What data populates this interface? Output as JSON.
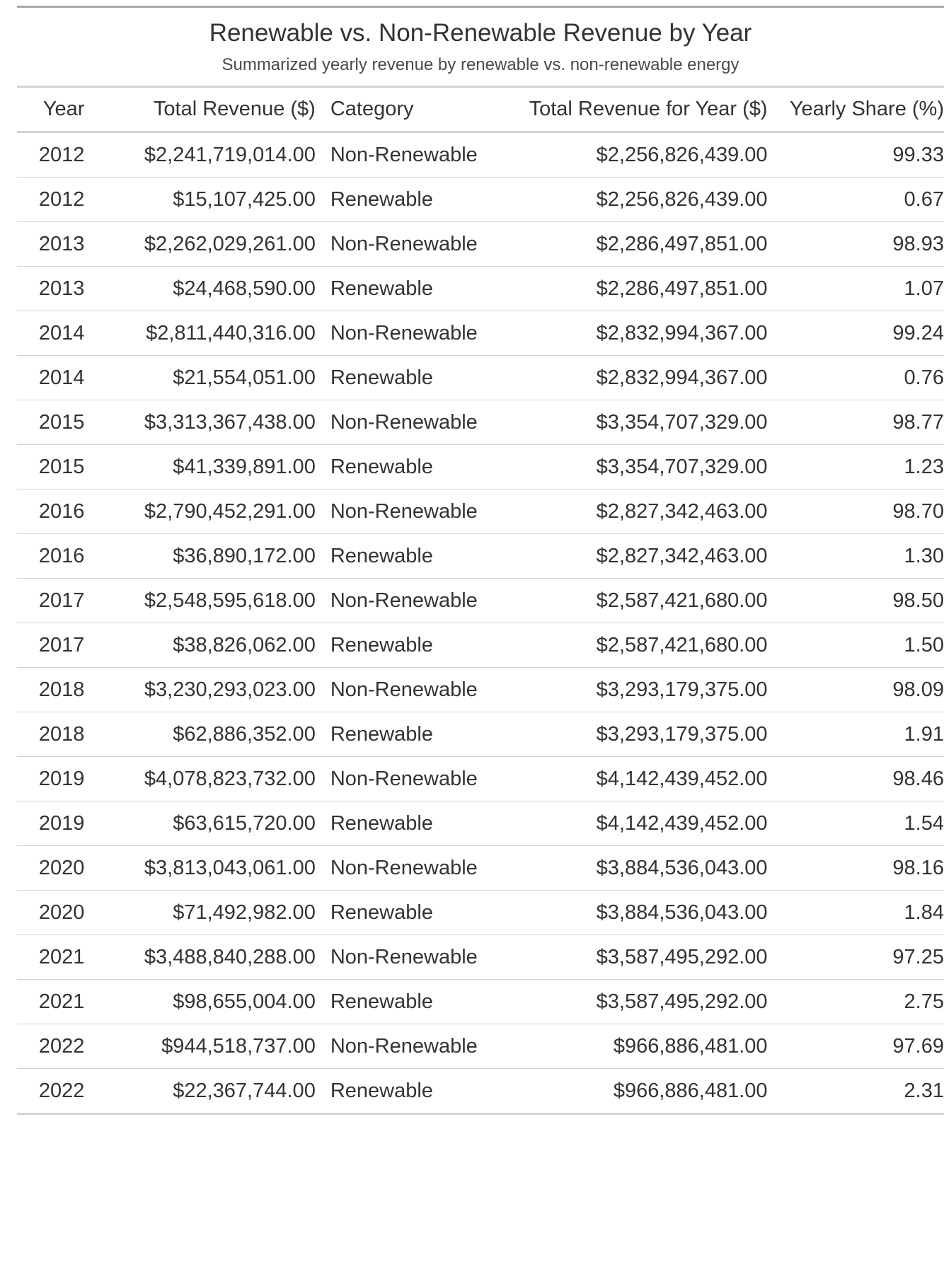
{
  "chart_data": {
    "type": "table",
    "title": "Renewable vs. Non-Renewable Revenue by Year",
    "subtitle": "Summarized yearly revenue by renewable vs. non-renewable energy",
    "columns": [
      "Year",
      "Total Revenue ($)",
      "Category",
      "Total Revenue for Year ($)",
      "Yearly Share (%)"
    ],
    "rows": [
      [
        "2012",
        "$2,241,719,014.00",
        "Non-Renewable",
        "$2,256,826,439.00",
        "99.33"
      ],
      [
        "2012",
        "$15,107,425.00",
        "Renewable",
        "$2,256,826,439.00",
        "0.67"
      ],
      [
        "2013",
        "$2,262,029,261.00",
        "Non-Renewable",
        "$2,286,497,851.00",
        "98.93"
      ],
      [
        "2013",
        "$24,468,590.00",
        "Renewable",
        "$2,286,497,851.00",
        "1.07"
      ],
      [
        "2014",
        "$2,811,440,316.00",
        "Non-Renewable",
        "$2,832,994,367.00",
        "99.24"
      ],
      [
        "2014",
        "$21,554,051.00",
        "Renewable",
        "$2,832,994,367.00",
        "0.76"
      ],
      [
        "2015",
        "$3,313,367,438.00",
        "Non-Renewable",
        "$3,354,707,329.00",
        "98.77"
      ],
      [
        "2015",
        "$41,339,891.00",
        "Renewable",
        "$3,354,707,329.00",
        "1.23"
      ],
      [
        "2016",
        "$2,790,452,291.00",
        "Non-Renewable",
        "$2,827,342,463.00",
        "98.70"
      ],
      [
        "2016",
        "$36,890,172.00",
        "Renewable",
        "$2,827,342,463.00",
        "1.30"
      ],
      [
        "2017",
        "$2,548,595,618.00",
        "Non-Renewable",
        "$2,587,421,680.00",
        "98.50"
      ],
      [
        "2017",
        "$38,826,062.00",
        "Renewable",
        "$2,587,421,680.00",
        "1.50"
      ],
      [
        "2018",
        "$3,230,293,023.00",
        "Non-Renewable",
        "$3,293,179,375.00",
        "98.09"
      ],
      [
        "2018",
        "$62,886,352.00",
        "Renewable",
        "$3,293,179,375.00",
        "1.91"
      ],
      [
        "2019",
        "$4,078,823,732.00",
        "Non-Renewable",
        "$4,142,439,452.00",
        "98.46"
      ],
      [
        "2019",
        "$63,615,720.00",
        "Renewable",
        "$4,142,439,452.00",
        "1.54"
      ],
      [
        "2020",
        "$3,813,043,061.00",
        "Non-Renewable",
        "$3,884,536,043.00",
        "98.16"
      ],
      [
        "2020",
        "$71,492,982.00",
        "Renewable",
        "$3,884,536,043.00",
        "1.84"
      ],
      [
        "2021",
        "$3,488,840,288.00",
        "Non-Renewable",
        "$3,587,495,292.00",
        "97.25"
      ],
      [
        "2021",
        "$98,655,004.00",
        "Renewable",
        "$3,587,495,292.00",
        "2.75"
      ],
      [
        "2022",
        "$944,518,737.00",
        "Non-Renewable",
        "$966,886,481.00",
        "97.69"
      ],
      [
        "2022",
        "$22,367,744.00",
        "Renewable",
        "$966,886,481.00",
        "2.31"
      ]
    ]
  },
  "colors": {
    "text": "#333333",
    "rule": "#d3d3d3",
    "top_rule": "#a8a8a8"
  }
}
